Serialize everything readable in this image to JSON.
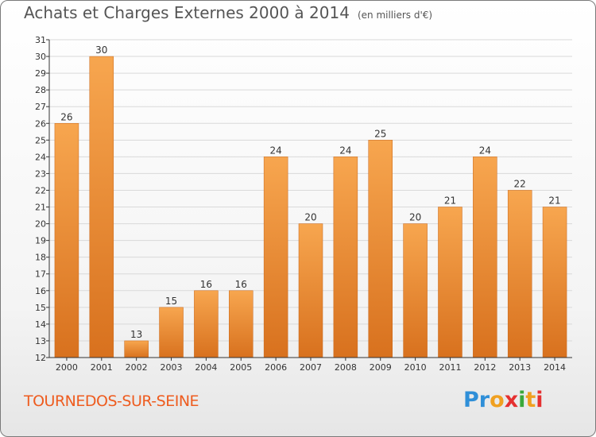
{
  "header": {
    "title": "Achats et Charges Externes 2000 à 2014",
    "subtitle": "(en milliers d'€)"
  },
  "footer": {
    "town": "TOURNEDOS-SUR-SEINE",
    "logo": "Proxiti",
    "logo_letters": [
      "P",
      "r",
      "o",
      "x",
      "i",
      "t",
      "i"
    ],
    "logo_colors": [
      "#2f8fd8",
      "#2f8fd8",
      "#f0a020",
      "#e53030",
      "#3aa83a",
      "#f0a020",
      "#e53030"
    ]
  },
  "colors": {
    "bar_top": "#f7a64f",
    "bar_bottom": "#d8711e",
    "grid": "#d9d9d9",
    "axis": "#333333"
  },
  "chart_data": {
    "type": "bar",
    "title": "Achats et Charges Externes 2000 à 2014",
    "subtitle": "(en milliers d'€)",
    "xlabel": "",
    "ylabel": "",
    "categories": [
      "2000",
      "2001",
      "2002",
      "2003",
      "2004",
      "2005",
      "2006",
      "2007",
      "2008",
      "2009",
      "2010",
      "2011",
      "2012",
      "2013",
      "2014"
    ],
    "values": [
      26,
      30,
      13,
      15,
      16,
      16,
      24,
      20,
      24,
      25,
      20,
      21,
      24,
      22,
      21
    ],
    "ylim": [
      12,
      31
    ],
    "yticks": [
      12,
      13,
      14,
      15,
      16,
      17,
      18,
      19,
      20,
      21,
      22,
      23,
      24,
      25,
      26,
      27,
      28,
      29,
      30,
      31
    ],
    "grid": true,
    "data_labels": true
  }
}
